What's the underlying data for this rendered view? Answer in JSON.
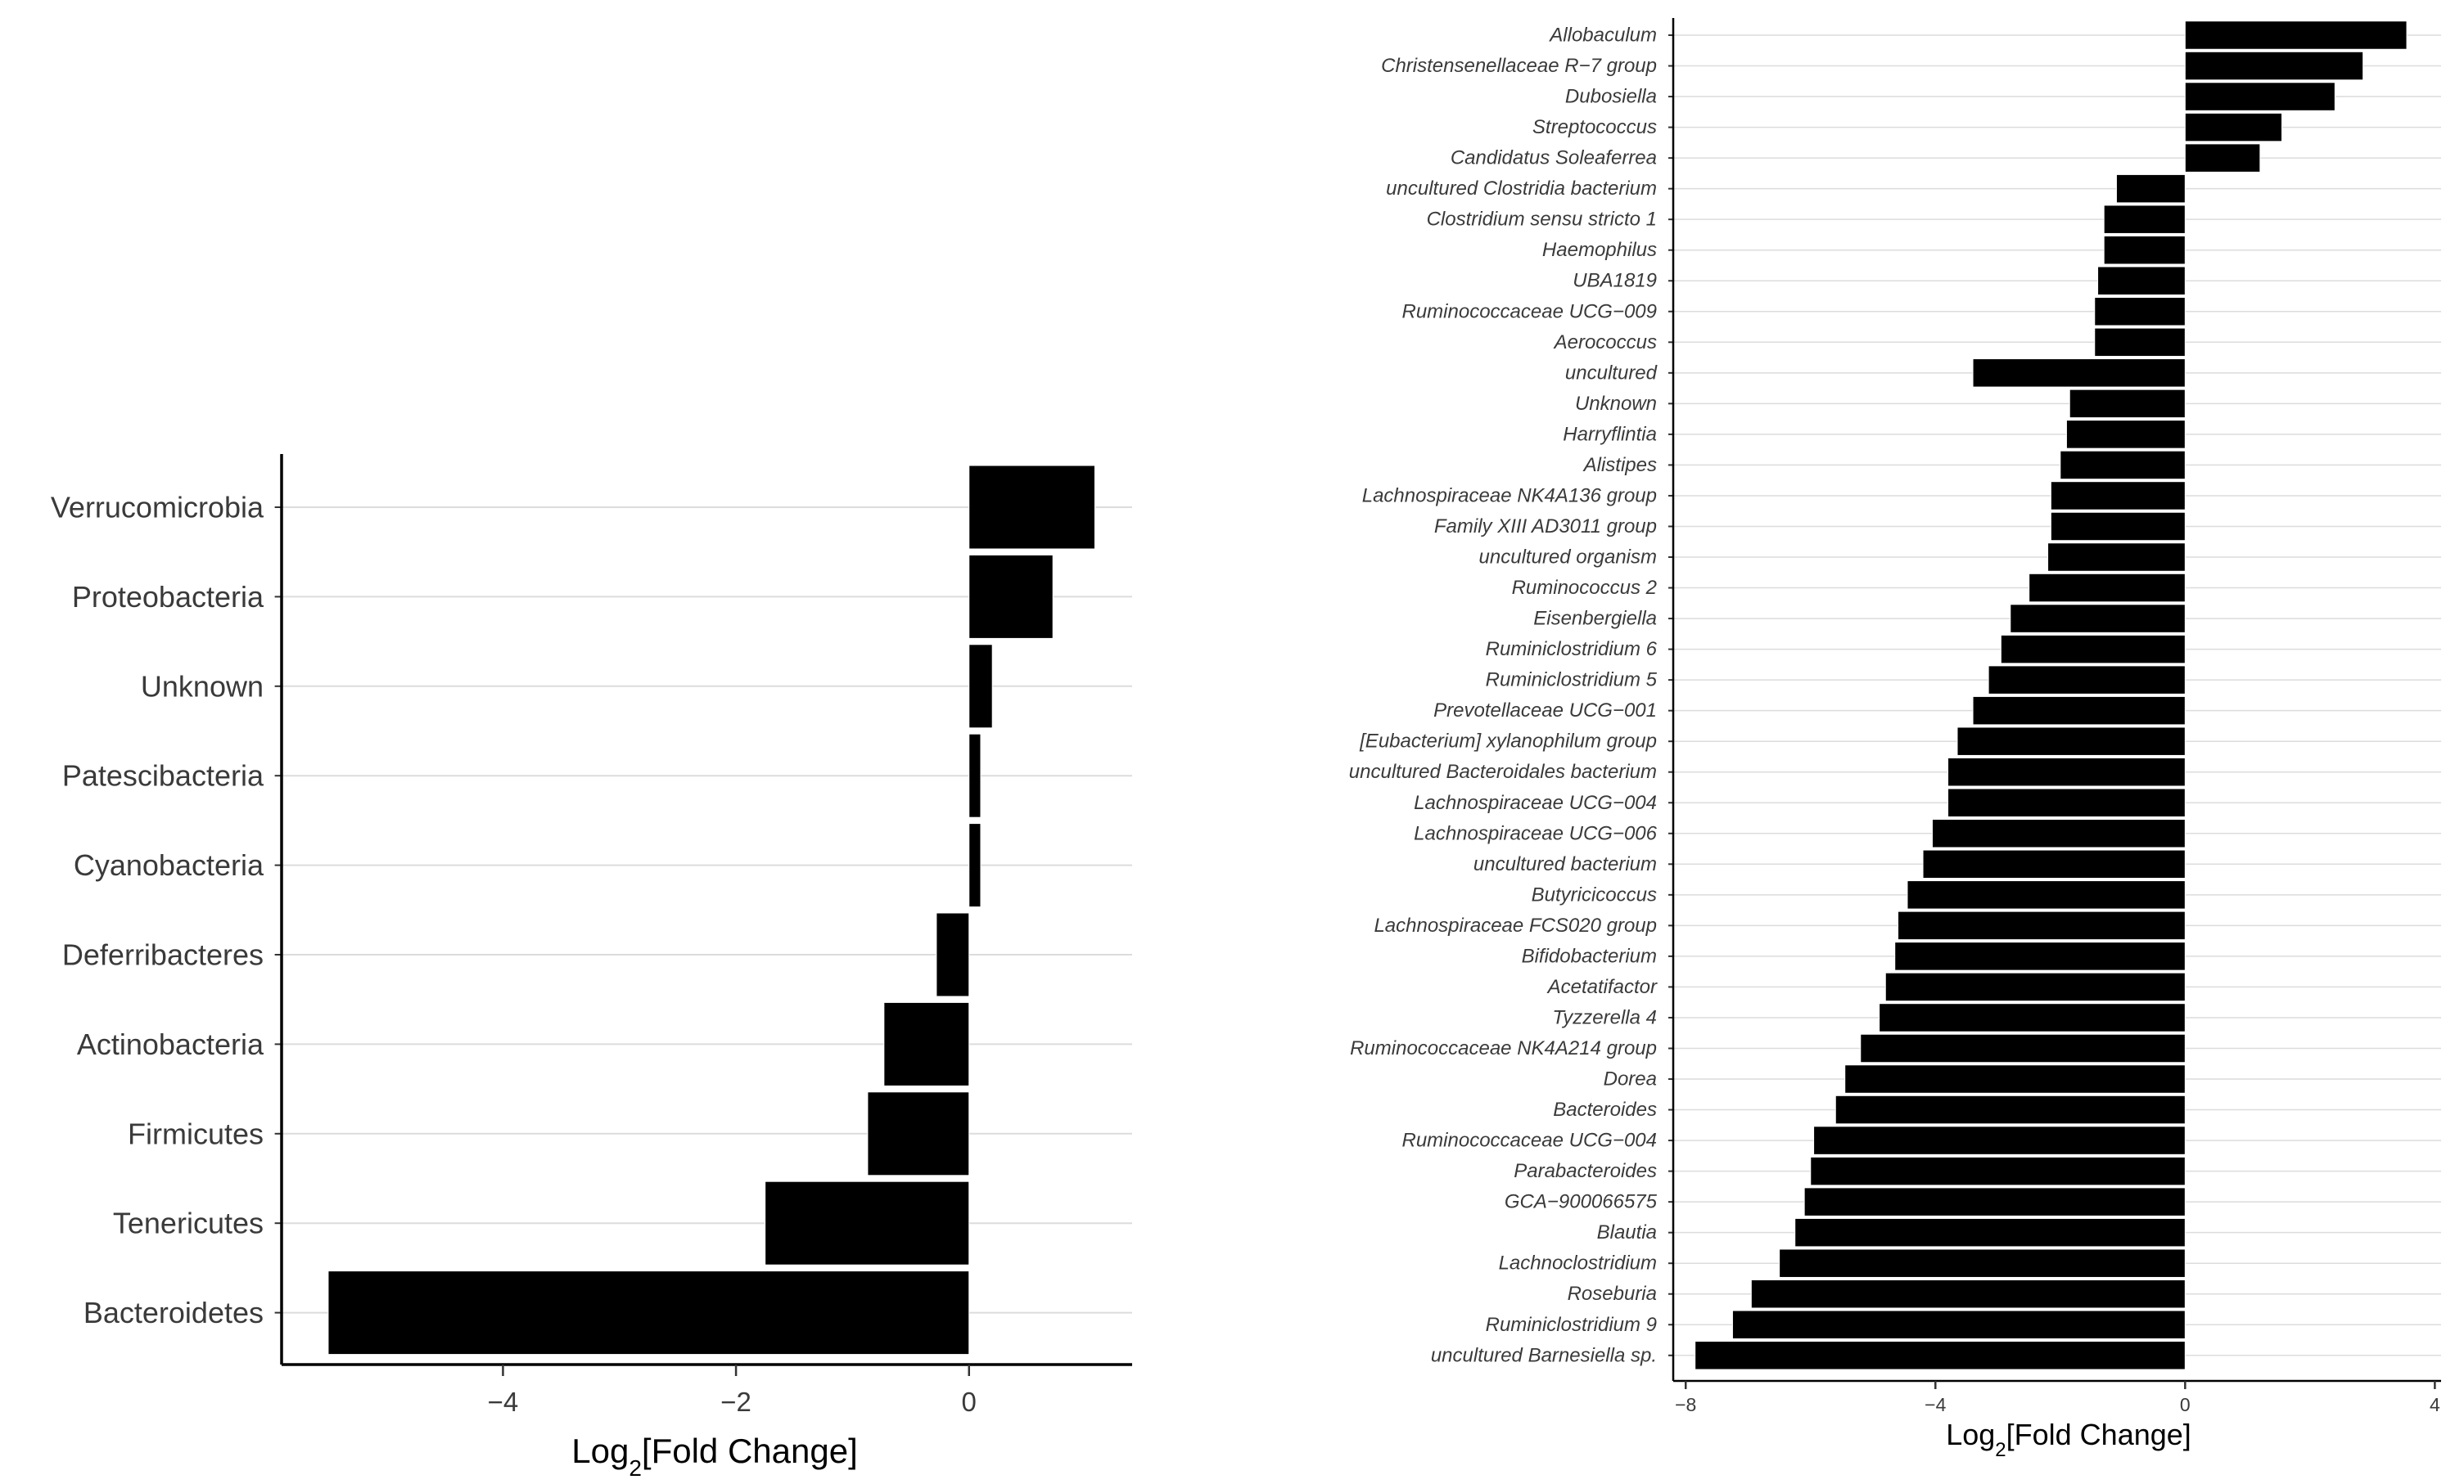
{
  "chart_data": [
    {
      "type": "bar",
      "orientation": "horizontal",
      "title": "",
      "xlabel": "Log2[Fold Change]",
      "xlabel_parts": {
        "prefix": "Log",
        "subscript": "2",
        "suffix": "[Fold Change]"
      },
      "ylabel": "",
      "xlim": [
        -5.9,
        1.4
      ],
      "xticks": [
        -4,
        -2,
        0
      ],
      "xtick_labels": [
        "−4",
        "−2",
        "0"
      ],
      "grid": "horizontal",
      "categories": [
        "Verrucomicrobia",
        "Proteobacteria",
        "Unknown",
        "Patescibacteria",
        "Cyanobacteria",
        "Deferribacteres",
        "Actinobacteria",
        "Firmicutes",
        "Tenericutes",
        "Bacteroidetes"
      ],
      "values": [
        1.08,
        0.72,
        0.2,
        0.1,
        0.1,
        -0.28,
        -0.73,
        -0.87,
        -1.75,
        -5.5
      ],
      "bar_color": "#000000"
    },
    {
      "type": "bar",
      "orientation": "horizontal",
      "title": "",
      "xlabel": "Log2[Fold Change]",
      "xlabel_parts": {
        "prefix": "Log",
        "subscript": "2",
        "suffix": "[Fold Change]"
      },
      "ylabel": "",
      "xlim": [
        -8.2,
        4.1
      ],
      "xticks": [
        -8,
        -4,
        0,
        4
      ],
      "xtick_labels": [
        "−8",
        "−4",
        "0",
        "4"
      ],
      "grid": "horizontal",
      "categories": [
        "Allobaculum",
        "Christensenellaceae R−7 group",
        "Dubosiella",
        "Streptococcus",
        "Candidatus Soleaferrea",
        "uncultured Clostridia bacterium",
        "Clostridium sensu stricto 1",
        "Haemophilus",
        "UBA1819",
        "Ruminococcaceae UCG−009",
        "Aerococcus",
        "uncultured",
        "Unknown",
        "Harryflintia",
        "Alistipes",
        "Lachnospiraceae NK4A136 group",
        "Family XIII AD3011 group",
        "uncultured organism",
        "Ruminococcus 2",
        "Eisenbergiella",
        "Ruminiclostridium 6",
        "Ruminiclostridium 5",
        "Prevotellaceae UCG−001",
        "[Eubacterium] xylanophilum group",
        "uncultured Bacteroidales bacterium",
        "Lachnospiraceae UCG−004",
        "Lachnospiraceae UCG−006",
        "uncultured bacterium",
        "Butyricicoccus",
        "Lachnospiraceae FCS020 group",
        "Bifidobacterium",
        "Acetatifactor",
        "Tyzzerella 4",
        "Ruminococcaceae NK4A214 group",
        "Dorea",
        "Bacteroides",
        "Ruminococcaceae UCG−004",
        "Parabacteroides",
        "GCA−900066575",
        "Blautia",
        "Lachnoclostridium",
        "Roseburia",
        "Ruminiclostridium 9",
        "uncultured Barnesiella sp."
      ],
      "values": [
        3.55,
        2.85,
        2.4,
        1.55,
        1.2,
        -1.1,
        -1.3,
        -1.3,
        -1.4,
        -1.45,
        -1.45,
        -3.4,
        -1.85,
        -1.9,
        -2.0,
        -2.15,
        -2.15,
        -2.2,
        -2.5,
        -2.8,
        -2.95,
        -3.15,
        -3.4,
        -3.65,
        -3.8,
        -3.8,
        -4.05,
        -4.2,
        -4.45,
        -4.6,
        -4.65,
        -4.8,
        -4.9,
        -5.2,
        -5.45,
        -5.6,
        -5.95,
        -6.0,
        -6.1,
        -6.25,
        -6.5,
        -6.95,
        -7.25,
        -7.85
      ],
      "bar_color": "#000000"
    }
  ]
}
